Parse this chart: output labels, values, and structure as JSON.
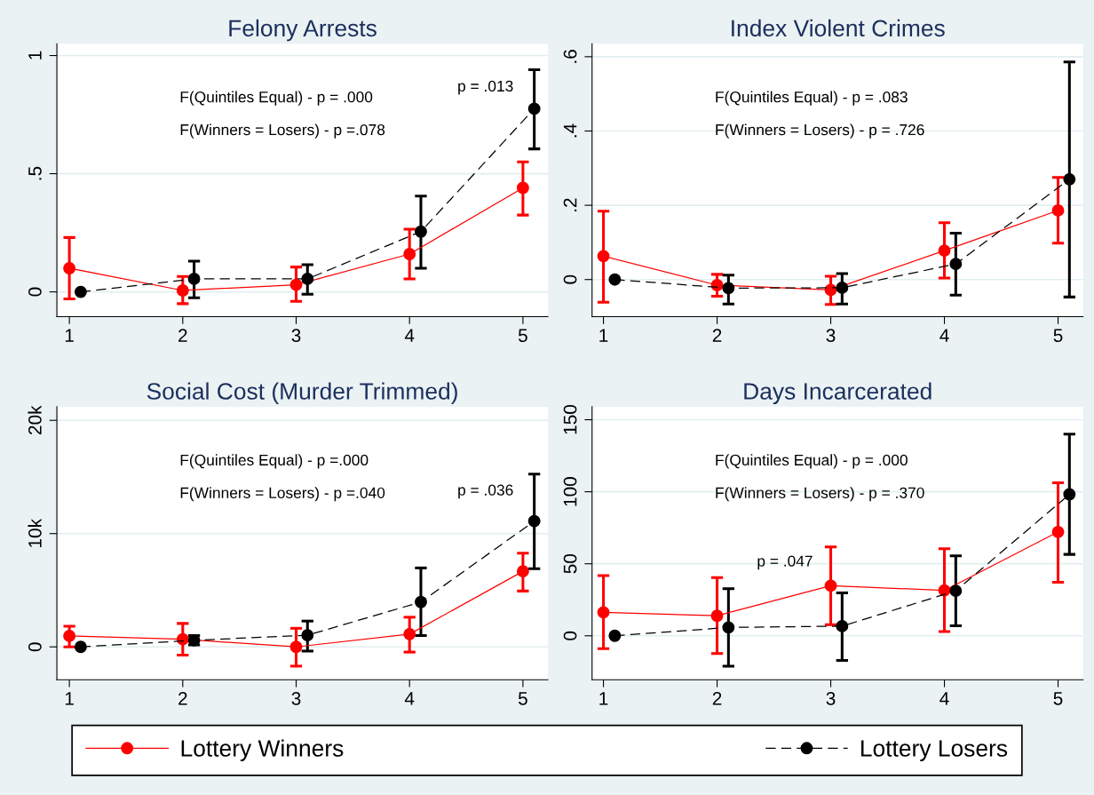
{
  "chart_data": [
    {
      "type": "line",
      "title": "Felony Arrests",
      "xlim": [
        0.89,
        5.22
      ],
      "xticks": [
        1,
        2,
        3,
        4,
        5
      ],
      "ylim": [
        -0.105,
        1.05
      ],
      "yticks": [
        0,
        {
          "value": 0.5,
          "label": ".5"
        },
        1
      ],
      "grid": "y",
      "legend": "bottom",
      "marker": "circle",
      "annotations": [
        "F(Quintiles Equal) - p = .000",
        "F(Winners = Losers) - p =.078",
        "p = .013"
      ],
      "series": [
        {
          "name": "Lottery Winners",
          "color": "#ff0000",
          "line_style": "solid",
          "x": [
            1,
            2,
            3,
            4,
            5
          ],
          "values": [
            0.1,
            0.006,
            0.03,
            0.16,
            0.44
          ],
          "errors": [
            [
              -0.03,
              0.23
            ],
            [
              -0.05,
              0.065
            ],
            [
              -0.04,
              0.105
            ],
            [
              0.055,
              0.265
            ],
            [
              0.325,
              0.55
            ]
          ]
        },
        {
          "name": "Lottery Losers",
          "color": "#000000",
          "line_style": "dashed",
          "x": [
            1.1,
            2.1,
            3.1,
            4.1,
            5.1
          ],
          "values": [
            0,
            0.055,
            0.055,
            0.255,
            0.775
          ],
          "errors": [
            null,
            [
              -0.025,
              0.13
            ],
            [
              -0.01,
              0.115
            ],
            [
              0.1,
              0.405
            ],
            [
              0.605,
              0.94
            ]
          ]
        }
      ]
    },
    {
      "type": "line",
      "title": "Index Violent Crimes",
      "xlim": [
        0.9,
        5.22
      ],
      "xticks": [
        1,
        2,
        3,
        4,
        5
      ],
      "ylim": [
        -0.1,
        0.635
      ],
      "yticks": [
        0,
        {
          "value": 0.2,
          "label": ".2"
        },
        {
          "value": 0.4,
          "label": ".4"
        },
        {
          "value": 0.6,
          "label": ".6"
        }
      ],
      "grid": "y",
      "marker": "circle",
      "annotations": [
        "F(Quintiles Equal) - p = .083",
        "F(Winners = Losers) - p = .726"
      ],
      "series": [
        {
          "color": "#ff0000",
          "line_style": "solid",
          "x": [
            1,
            2,
            3,
            4,
            5
          ],
          "values": [
            0.063,
            -0.015,
            -0.028,
            0.078,
            0.186
          ],
          "errors": [
            [
              -0.061,
              0.184
            ],
            [
              -0.045,
              0.014
            ],
            [
              -0.067,
              0.009
            ],
            [
              0.004,
              0.153
            ],
            [
              0.098,
              0.275
            ]
          ]
        },
        {
          "color": "#000000",
          "line_style": "dashed",
          "x": [
            1.1,
            2.1,
            3.1,
            4.1,
            5.1
          ],
          "values": [
            0,
            -0.023,
            -0.022,
            0.042,
            0.27
          ],
          "errors": [
            null,
            [
              -0.066,
              0.012
            ],
            [
              -0.066,
              0.016
            ],
            [
              -0.042,
              0.125
            ],
            [
              -0.047,
              0.586
            ]
          ]
        }
      ]
    },
    {
      "type": "line",
      "title": "Social Cost (Murder Trimmed)",
      "xlim": [
        0.89,
        5.22
      ],
      "xticks": [
        1,
        2,
        3,
        4,
        5
      ],
      "ylim": [
        -2900,
        21200
      ],
      "yticks": [
        0,
        {
          "value": 10000,
          "label": "10k"
        },
        {
          "value": 20000,
          "label": "20k"
        }
      ],
      "grid": "y",
      "marker": "circle",
      "annotations": [
        "F(Quintiles Equal) - p =.000",
        "F(Winners = Losers) - p =.040",
        "p = .036"
      ],
      "series": [
        {
          "color": "#ff0000",
          "line_style": "solid",
          "x": [
            1,
            2,
            3,
            4,
            5
          ],
          "values": [
            970,
            670,
            0,
            1130,
            6670
          ],
          "errors": [
            [
              0,
              1830
            ],
            [
              -730,
              2070
            ],
            [
              -1700,
              1640
            ],
            [
              -460,
              2620
            ],
            [
              4930,
              8280
            ]
          ]
        },
        {
          "color": "#000000",
          "line_style": "dashed",
          "x": [
            1.1,
            2.1,
            3.1,
            4.1,
            5.1
          ],
          "values": [
            0,
            580,
            1030,
            3960,
            11100
          ],
          "errors": [
            null,
            [
              180,
              1000
            ],
            [
              -370,
              2280
            ],
            [
              1000,
              6970
            ],
            [
              6900,
              15250
            ]
          ]
        }
      ]
    },
    {
      "type": "line",
      "title": "Days Incarcerated",
      "xlim": [
        0.9,
        5.22
      ],
      "xticks": [
        1,
        2,
        3,
        4,
        5
      ],
      "ylim": [
        -30.5,
        159
      ],
      "yticks": [
        0,
        50,
        100,
        150
      ],
      "grid": "y",
      "marker": "circle",
      "annotations": [
        "F(Quintiles Equal) - p = .000",
        "F(Winners = Losers) - p = .370",
        "p = .047"
      ],
      "series": [
        {
          "color": "#ff0000",
          "line_style": "solid",
          "x": [
            1,
            2,
            3,
            4,
            5
          ],
          "values": [
            16.3,
            13.9,
            34.8,
            31.5,
            72.1
          ],
          "errors": [
            [
              -8.9,
              41.8
            ],
            [
              -12.3,
              40.4
            ],
            [
              7.7,
              61.7
            ],
            [
              2.9,
              60.5
            ],
            [
              37.2,
              106.2
            ]
          ]
        },
        {
          "color": "#000000",
          "line_style": "dashed",
          "x": [
            1.1,
            2.1,
            3.1,
            4.1,
            5.1
          ],
          "values": [
            0,
            5.8,
            6.7,
            31.2,
            98.2
          ],
          "errors": [
            null,
            [
              -21.1,
              32.7
            ],
            [
              -17.1,
              29.8
            ],
            [
              7.0,
              55.5
            ],
            [
              56.5,
              140
            ]
          ]
        }
      ]
    }
  ]
}
